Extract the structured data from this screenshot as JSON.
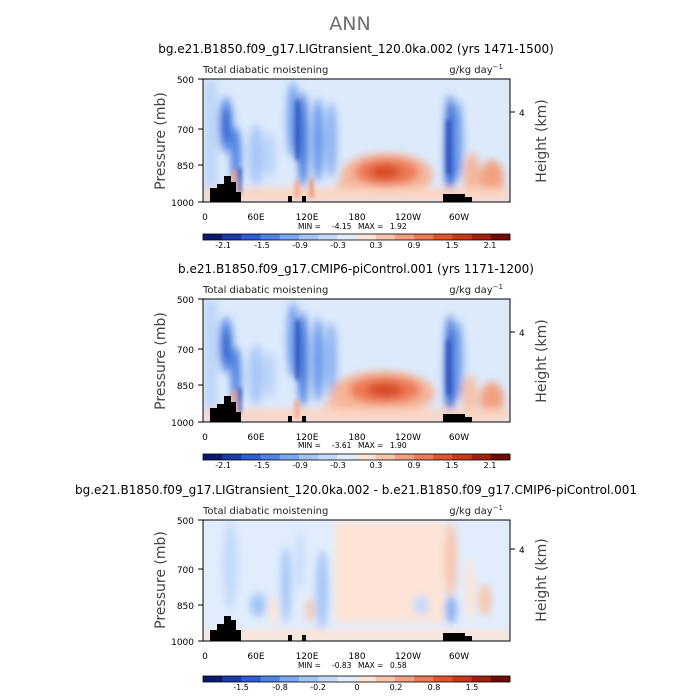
{
  "figure": {
    "title": "ANN"
  },
  "chart_data": [
    {
      "type": "heatmap",
      "title": "bg.e21.B1850.f09_g17.LIGtransient_120.0ka.002 (yrs 1471-1500)",
      "left_label": "Total diabatic moistening",
      "right_label": "g/kg day",
      "unit_exp": "−1",
      "ylabel": "Pressure  (mb)",
      "ylabel_right": "Height  (km)",
      "y_ticks": [
        "500",
        "700",
        "850",
        "1000"
      ],
      "y_ticks_right": [
        "4"
      ],
      "x_ticks": [
        "0",
        "60E",
        "120E",
        "180",
        "120W",
        "60W"
      ],
      "stats": {
        "min_label": "MIN =",
        "min": "-4.15",
        "max_label": "MAX =",
        "max": "1.92"
      },
      "colorbar_ticks": [
        "-2.1",
        "-1.5",
        "-0.9",
        "-0.3",
        "0.3",
        "0.9",
        "1.5",
        "2.1"
      ],
      "colorbar_colors": [
        "#0b1a6e",
        "#1a3ca8",
        "#2c5fd4",
        "#4f83e6",
        "#7aa7f2",
        "#a3c4f7",
        "#c5dafb",
        "#e1edfd",
        "#fde4d6",
        "#f8c4ac",
        "#f3a080",
        "#ec7a55",
        "#e0552f",
        "#c93818",
        "#a5200c",
        "#6e0c04"
      ]
    },
    {
      "type": "heatmap",
      "title": "b.e21.B1850.f09_g17.CMIP6-piControl.001 (yrs 1171-1200)",
      "left_label": "Total diabatic moistening",
      "right_label": "g/kg day",
      "unit_exp": "−1",
      "ylabel": "Pressure  (mb)",
      "ylabel_right": "Height  (km)",
      "y_ticks": [
        "500",
        "700",
        "850",
        "1000"
      ],
      "y_ticks_right": [
        "4"
      ],
      "x_ticks": [
        "0",
        "60E",
        "120E",
        "180",
        "120W",
        "60W"
      ],
      "stats": {
        "min_label": "MIN =",
        "min": "-3.61",
        "max_label": "MAX =",
        "max": "1.90"
      },
      "colorbar_ticks": [
        "-2.1",
        "-1.5",
        "-0.9",
        "-0.3",
        "0.3",
        "0.9",
        "1.5",
        "2.1"
      ],
      "colorbar_colors": [
        "#0b1a6e",
        "#1a3ca8",
        "#2c5fd4",
        "#4f83e6",
        "#7aa7f2",
        "#a3c4f7",
        "#c5dafb",
        "#e1edfd",
        "#fde4d6",
        "#f8c4ac",
        "#f3a080",
        "#ec7a55",
        "#e0552f",
        "#c93818",
        "#a5200c",
        "#6e0c04"
      ]
    },
    {
      "type": "heatmap",
      "title": "bg.e21.B1850.f09_g17.LIGtransient_120.0ka.002 - b.e21.B1850.f09_g17.CMIP6-piControl.001",
      "left_label": "Total diabatic moistening",
      "right_label": "g/kg day",
      "unit_exp": "−1",
      "ylabel": "Pressure  (mb)",
      "ylabel_right": "Height  (km)",
      "y_ticks": [
        "500",
        "700",
        "850",
        "1000"
      ],
      "y_ticks_right": [
        "4"
      ],
      "x_ticks": [
        "0",
        "60E",
        "120E",
        "180",
        "120W",
        "60W"
      ],
      "stats": {
        "min_label": "MIN =",
        "min": "-0.83",
        "max_label": "MAX =",
        "max": "0.58"
      },
      "colorbar_ticks": [
        "-1.5",
        "-0.8",
        "-0.2",
        "0",
        "0.2",
        "0.8",
        "1.5"
      ],
      "colorbar_colors": [
        "#0b1a6e",
        "#1a3ca8",
        "#2c5fd4",
        "#4f83e6",
        "#7aa7f2",
        "#a3c4f7",
        "#c5dafb",
        "#e1edfd",
        "#fde4d6",
        "#f8c4ac",
        "#f3a080",
        "#ec7a55",
        "#e0552f",
        "#c93818",
        "#a5200c",
        "#6e0c04"
      ]
    }
  ]
}
